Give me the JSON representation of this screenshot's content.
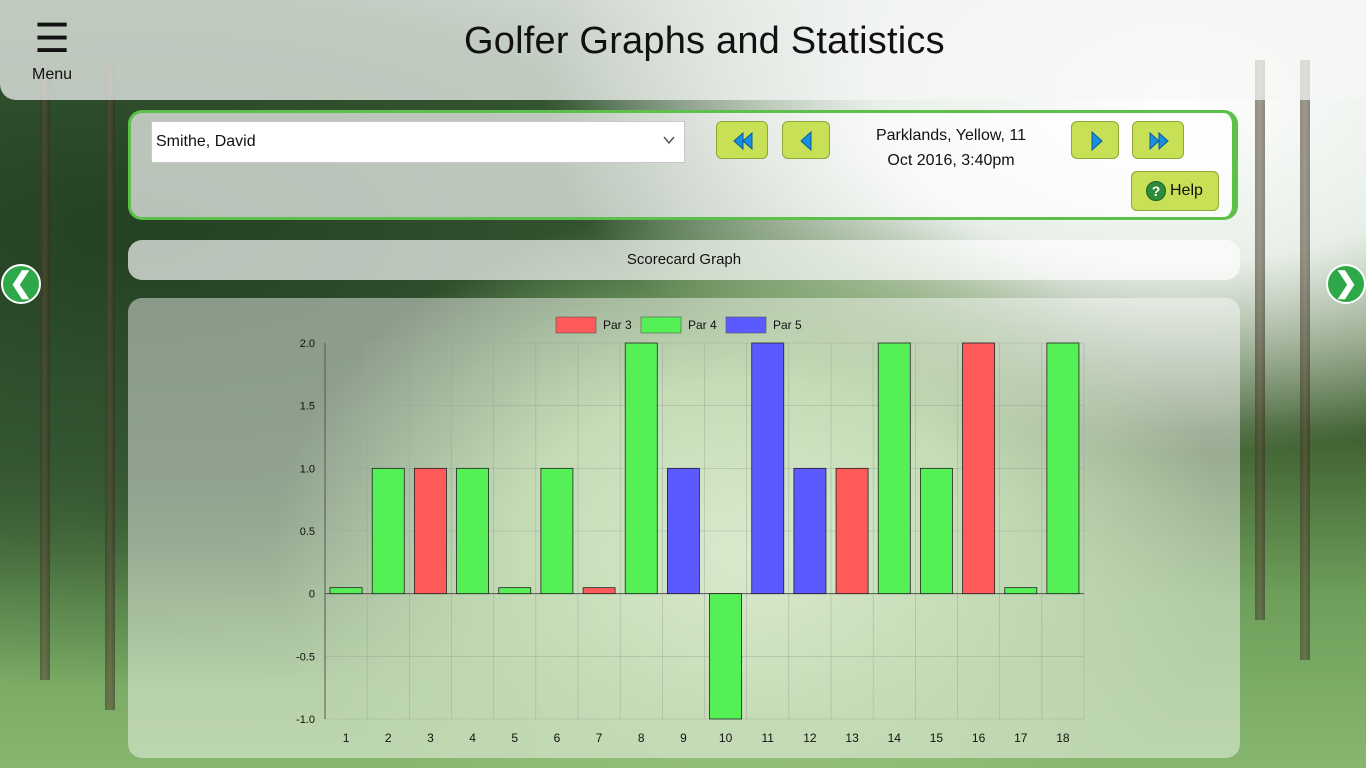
{
  "app": {
    "title": "Golfer Graphs and Statistics",
    "menu_label": "Menu",
    "menu_icon": "hamburger-icon"
  },
  "filters": {
    "golfer_selected": "Smithe, David",
    "round_course": "Parklands, Yellow, 11",
    "round_date": "Oct 2016, 3:40pm",
    "help_label": "Help",
    "help_icon": "question-icon",
    "nav_icons": [
      "first-round-icon",
      "previous-round-icon",
      "next-round-icon",
      "last-round-icon"
    ]
  },
  "section": {
    "title": "Scorecard Graph",
    "prev_icon": "chevron-left-icon",
    "next_icon": "chevron-right-icon"
  },
  "colors": {
    "par3": "#ff5a5a",
    "par4": "#55f055",
    "par5": "#5a5aff",
    "accent": "#c8e055",
    "frame": "#5cc04a"
  },
  "chart_data": {
    "type": "bar",
    "categories": [
      "1",
      "2",
      "3",
      "4",
      "5",
      "6",
      "7",
      "8",
      "9",
      "10",
      "11",
      "12",
      "13",
      "14",
      "15",
      "16",
      "17",
      "18"
    ],
    "values": [
      0,
      1,
      1,
      1,
      0,
      1,
      0,
      2,
      1,
      -1,
      2,
      1,
      1,
      2,
      1,
      2,
      0,
      2
    ],
    "par": [
      4,
      4,
      3,
      4,
      4,
      4,
      3,
      4,
      5,
      4,
      5,
      5,
      3,
      4,
      4,
      3,
      4,
      4
    ],
    "legend": [
      {
        "name": "Par 3",
        "par": 3
      },
      {
        "name": "Par 4",
        "par": 4
      },
      {
        "name": "Par 5",
        "par": 5
      }
    ],
    "legend_position": "top",
    "yticks": [
      "2.0",
      "1.5",
      "1.0",
      "0.5",
      "0",
      "-0.5",
      "-1.0"
    ],
    "ylim": [
      -1,
      2
    ],
    "grid": true
  }
}
